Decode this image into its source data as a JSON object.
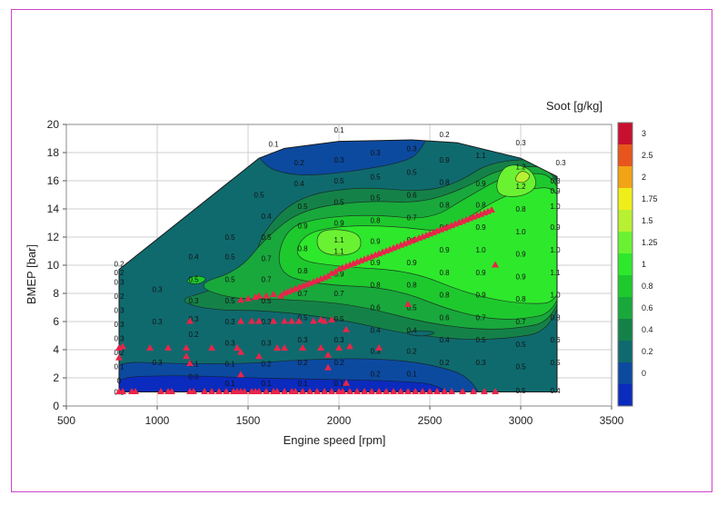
{
  "chart_data": {
    "type": "heatmap",
    "title": "",
    "xlabel": "Engine speed [rpm]",
    "ylabel": "BMEP [bar]",
    "colorbar_title": "Soot [g/kg]",
    "xlim": [
      500,
      3500
    ],
    "ylim": [
      0,
      20
    ],
    "x_ticks": [
      "500",
      "1000",
      "1500",
      "2000",
      "2500",
      "3000",
      "3500"
    ],
    "y_ticks": [
      "0",
      "2",
      "4",
      "6",
      "8",
      "10",
      "12",
      "14",
      "16",
      "18",
      "20"
    ],
    "colorbar_ticks": [
      "3",
      "2.5",
      "2",
      "1.75",
      "1.5",
      "1.25",
      "1",
      "0.8",
      "0.6",
      "0.4",
      "0.2",
      "0"
    ],
    "colorbar_colors": [
      "#c8102e",
      "#e8551c",
      "#f2a316",
      "#f0ee1a",
      "#b8f032",
      "#6af232",
      "#2ee82c",
      "#1ec92e",
      "#19a83c",
      "#148248",
      "#0f6a6e",
      "#0c4aa0",
      "#0a2bbd"
    ],
    "boundary": [
      [
        790,
        9.7
      ],
      [
        1560,
        17.6
      ],
      [
        1700,
        18.3
      ],
      [
        2000,
        18.8
      ],
      [
        2400,
        18.9
      ],
      [
        2650,
        18.7
      ],
      [
        3000,
        17.6
      ],
      [
        3200,
        16.3
      ],
      [
        3200,
        1.0
      ],
      [
        790,
        1.0
      ]
    ],
    "contour_labels": [
      {
        "x": 790,
        "y": 9.5,
        "v": "0.2"
      },
      {
        "x": 790,
        "y": 8.8,
        "v": "0.3"
      },
      {
        "x": 790,
        "y": 7.8,
        "v": "0.2"
      },
      {
        "x": 790,
        "y": 6.8,
        "v": "0.3"
      },
      {
        "x": 790,
        "y": 5.8,
        "v": "0.3"
      },
      {
        "x": 790,
        "y": 4.8,
        "v": "0.3"
      },
      {
        "x": 790,
        "y": 3.8,
        "v": "0.2"
      },
      {
        "x": 790,
        "y": 2.8,
        "v": "0.1"
      },
      {
        "x": 790,
        "y": 1.8,
        "v": "0"
      },
      {
        "x": 790,
        "y": 1.0,
        "v": "0.1"
      },
      {
        "x": 1000,
        "y": 8.3,
        "v": "0.3"
      },
      {
        "x": 1000,
        "y": 6.0,
        "v": "0.3"
      },
      {
        "x": 1000,
        "y": 3.1,
        "v": "0.3"
      },
      {
        "x": 1200,
        "y": 10.6,
        "v": "0.4"
      },
      {
        "x": 1200,
        "y": 9.0,
        "v": "0.5"
      },
      {
        "x": 1200,
        "y": 7.5,
        "v": "0.3"
      },
      {
        "x": 1200,
        "y": 6.2,
        "v": "0.3"
      },
      {
        "x": 1200,
        "y": 5.1,
        "v": "0.2"
      },
      {
        "x": 1200,
        "y": 3.0,
        "v": "0.1"
      },
      {
        "x": 1200,
        "y": 2.1,
        "v": "0.0"
      },
      {
        "x": 1400,
        "y": 12.0,
        "v": "0.5"
      },
      {
        "x": 1400,
        "y": 10.6,
        "v": "0.5"
      },
      {
        "x": 1400,
        "y": 9.0,
        "v": "0.5"
      },
      {
        "x": 1400,
        "y": 7.5,
        "v": "0.5"
      },
      {
        "x": 1400,
        "y": 6.0,
        "v": "0.3"
      },
      {
        "x": 1400,
        "y": 4.5,
        "v": "0.3"
      },
      {
        "x": 1400,
        "y": 3.0,
        "v": "0.1"
      },
      {
        "x": 1400,
        "y": 1.6,
        "v": "0.1"
      },
      {
        "x": 1560,
        "y": 15.0,
        "v": "0.5"
      },
      {
        "x": 1600,
        "y": 13.5,
        "v": "0.4"
      },
      {
        "x": 1600,
        "y": 12.0,
        "v": "0.5"
      },
      {
        "x": 1600,
        "y": 10.5,
        "v": "0.7"
      },
      {
        "x": 1600,
        "y": 9.0,
        "v": "0.7"
      },
      {
        "x": 1600,
        "y": 7.5,
        "v": "0.5"
      },
      {
        "x": 1600,
        "y": 6.0,
        "v": "0.3"
      },
      {
        "x": 1600,
        "y": 4.5,
        "v": "0.3"
      },
      {
        "x": 1600,
        "y": 3.0,
        "v": "0.2"
      },
      {
        "x": 1600,
        "y": 1.6,
        "v": "0.1"
      },
      {
        "x": 1780,
        "y": 17.3,
        "v": "0.2"
      },
      {
        "x": 1780,
        "y": 15.8,
        "v": "0.4"
      },
      {
        "x": 1800,
        "y": 14.2,
        "v": "0.5"
      },
      {
        "x": 1800,
        "y": 12.8,
        "v": "0.9"
      },
      {
        "x": 1800,
        "y": 11.2,
        "v": "0.8"
      },
      {
        "x": 1800,
        "y": 9.6,
        "v": "0.8"
      },
      {
        "x": 1800,
        "y": 8.0,
        "v": "0.7"
      },
      {
        "x": 1800,
        "y": 6.3,
        "v": "0.5"
      },
      {
        "x": 1800,
        "y": 4.7,
        "v": "0.3"
      },
      {
        "x": 1800,
        "y": 3.1,
        "v": "0.2"
      },
      {
        "x": 1800,
        "y": 1.6,
        "v": "0.1"
      },
      {
        "x": 2000,
        "y": 17.5,
        "v": "0.3"
      },
      {
        "x": 2000,
        "y": 16.0,
        "v": "0.5"
      },
      {
        "x": 2000,
        "y": 14.5,
        "v": "0.5"
      },
      {
        "x": 2000,
        "y": 13.0,
        "v": "0.9"
      },
      {
        "x": 2000,
        "y": 11.8,
        "v": "1.1"
      },
      {
        "x": 2000,
        "y": 11.0,
        "v": "1.1"
      },
      {
        "x": 2000,
        "y": 9.4,
        "v": "0.9"
      },
      {
        "x": 2000,
        "y": 8.0,
        "v": "0.7"
      },
      {
        "x": 2000,
        "y": 6.2,
        "v": "0.5"
      },
      {
        "x": 2000,
        "y": 4.7,
        "v": "0.3"
      },
      {
        "x": 2000,
        "y": 3.1,
        "v": "0.2"
      },
      {
        "x": 2000,
        "y": 1.6,
        "v": "0.1"
      },
      {
        "x": 2200,
        "y": 18.0,
        "v": "0.3"
      },
      {
        "x": 2200,
        "y": 16.3,
        "v": "0.5"
      },
      {
        "x": 2200,
        "y": 14.8,
        "v": "0.5"
      },
      {
        "x": 2200,
        "y": 13.2,
        "v": "0.8"
      },
      {
        "x": 2200,
        "y": 11.7,
        "v": "0.9"
      },
      {
        "x": 2200,
        "y": 10.2,
        "v": "0.9"
      },
      {
        "x": 2200,
        "y": 8.6,
        "v": "0.8"
      },
      {
        "x": 2200,
        "y": 7.0,
        "v": "0.6"
      },
      {
        "x": 2200,
        "y": 5.4,
        "v": "0.4"
      },
      {
        "x": 2200,
        "y": 3.9,
        "v": "0.3"
      },
      {
        "x": 2200,
        "y": 2.3,
        "v": "0.2"
      },
      {
        "x": 2400,
        "y": 18.3,
        "v": "0.3"
      },
      {
        "x": 2400,
        "y": 16.6,
        "v": "0.5"
      },
      {
        "x": 2400,
        "y": 15.0,
        "v": "0.6"
      },
      {
        "x": 2400,
        "y": 13.4,
        "v": "0.7"
      },
      {
        "x": 2400,
        "y": 11.8,
        "v": "0.9"
      },
      {
        "x": 2400,
        "y": 10.2,
        "v": "0.9"
      },
      {
        "x": 2400,
        "y": 8.6,
        "v": "0.8"
      },
      {
        "x": 2400,
        "y": 7.0,
        "v": "0.5"
      },
      {
        "x": 2400,
        "y": 5.4,
        "v": "0.4"
      },
      {
        "x": 2400,
        "y": 3.9,
        "v": "0.2"
      },
      {
        "x": 2400,
        "y": 2.3,
        "v": "0.1"
      },
      {
        "x": 2580,
        "y": 17.5,
        "v": "0.9"
      },
      {
        "x": 2580,
        "y": 15.9,
        "v": "0.8"
      },
      {
        "x": 2580,
        "y": 14.3,
        "v": "0.8"
      },
      {
        "x": 2580,
        "y": 12.7,
        "v": "0.9"
      },
      {
        "x": 2580,
        "y": 11.1,
        "v": "0.9"
      },
      {
        "x": 2580,
        "y": 9.5,
        "v": "0.8"
      },
      {
        "x": 2580,
        "y": 7.9,
        "v": "0.8"
      },
      {
        "x": 2580,
        "y": 6.3,
        "v": "0.6"
      },
      {
        "x": 2580,
        "y": 4.7,
        "v": "0.4"
      },
      {
        "x": 2580,
        "y": 3.1,
        "v": "0.2"
      },
      {
        "x": 2780,
        "y": 17.8,
        "v": "1.1"
      },
      {
        "x": 2780,
        "y": 15.8,
        "v": "0.9"
      },
      {
        "x": 2780,
        "y": 14.3,
        "v": "0.8"
      },
      {
        "x": 2780,
        "y": 12.7,
        "v": "0.9"
      },
      {
        "x": 2780,
        "y": 11.1,
        "v": "1.0"
      },
      {
        "x": 2780,
        "y": 9.5,
        "v": "0.9"
      },
      {
        "x": 2780,
        "y": 7.9,
        "v": "0.9"
      },
      {
        "x": 2780,
        "y": 6.3,
        "v": "0.7"
      },
      {
        "x": 2780,
        "y": 4.7,
        "v": "0.5"
      },
      {
        "x": 2780,
        "y": 3.1,
        "v": "0.3"
      },
      {
        "x": 3000,
        "y": 17.0,
        "v": "1.2"
      },
      {
        "x": 3000,
        "y": 15.6,
        "v": "1.2"
      },
      {
        "x": 3000,
        "y": 14.0,
        "v": "0.8"
      },
      {
        "x": 3000,
        "y": 12.4,
        "v": "1.0"
      },
      {
        "x": 3000,
        "y": 10.8,
        "v": "0.9"
      },
      {
        "x": 3000,
        "y": 9.2,
        "v": "0.9"
      },
      {
        "x": 3000,
        "y": 7.6,
        "v": "0.8"
      },
      {
        "x": 3000,
        "y": 6.0,
        "v": "0.7"
      },
      {
        "x": 3000,
        "y": 4.4,
        "v": "0.5"
      },
      {
        "x": 3000,
        "y": 2.8,
        "v": "0.5"
      },
      {
        "x": 3000,
        "y": 1.1,
        "v": "0.5"
      },
      {
        "x": 3190,
        "y": 16.0,
        "v": "0.3"
      },
      {
        "x": 3190,
        "y": 15.3,
        "v": "0.9"
      },
      {
        "x": 3190,
        "y": 14.2,
        "v": "1.0"
      },
      {
        "x": 3190,
        "y": 12.7,
        "v": "0.9"
      },
      {
        "x": 3190,
        "y": 11.1,
        "v": "1.0"
      },
      {
        "x": 3190,
        "y": 9.5,
        "v": "1.1"
      },
      {
        "x": 3190,
        "y": 7.9,
        "v": "1.0"
      },
      {
        "x": 3190,
        "y": 6.3,
        "v": "0.8"
      },
      {
        "x": 3190,
        "y": 4.7,
        "v": "0.6"
      },
      {
        "x": 3190,
        "y": 3.1,
        "v": "0.5"
      },
      {
        "x": 3190,
        "y": 1.1,
        "v": "0.4"
      },
      {
        "x": 790,
        "y": 10.1,
        "v": "0.2"
      },
      {
        "x": 1640,
        "y": 18.6,
        "v": "0.1"
      },
      {
        "x": 2000,
        "y": 19.6,
        "v": "0.1"
      },
      {
        "x": 2580,
        "y": 19.3,
        "v": "0.2"
      },
      {
        "x": 3000,
        "y": 18.7,
        "v": "0.3"
      },
      {
        "x": 3220,
        "y": 17.3,
        "v": "0.3"
      }
    ],
    "points": [
      [
        790,
        1
      ],
      [
        810,
        1
      ],
      [
        860,
        1
      ],
      [
        880,
        1
      ],
      [
        1020,
        1
      ],
      [
        1060,
        1
      ],
      [
        1080,
        1
      ],
      [
        1180,
        1
      ],
      [
        1200,
        1
      ],
      [
        1260,
        1
      ],
      [
        1300,
        1
      ],
      [
        1340,
        1
      ],
      [
        1380,
        1
      ],
      [
        1420,
        1
      ],
      [
        1440,
        1
      ],
      [
        1460,
        1
      ],
      [
        1480,
        1
      ],
      [
        1520,
        1
      ],
      [
        1540,
        1
      ],
      [
        1560,
        1
      ],
      [
        1600,
        1
      ],
      [
        1640,
        1
      ],
      [
        1660,
        1
      ],
      [
        1700,
        1
      ],
      [
        1740,
        1
      ],
      [
        1760,
        1
      ],
      [
        1800,
        1
      ],
      [
        1840,
        1
      ],
      [
        1880,
        1
      ],
      [
        1920,
        1
      ],
      [
        1960,
        1
      ],
      [
        2000,
        1
      ],
      [
        2020,
        1
      ],
      [
        2060,
        1
      ],
      [
        2100,
        1
      ],
      [
        2140,
        1
      ],
      [
        2180,
        1
      ],
      [
        2220,
        1
      ],
      [
        2260,
        1
      ],
      [
        2300,
        1
      ],
      [
        2340,
        1
      ],
      [
        2380,
        1
      ],
      [
        2420,
        1
      ],
      [
        2460,
        1
      ],
      [
        2500,
        1
      ],
      [
        2540,
        1
      ],
      [
        2580,
        1
      ],
      [
        2620,
        1
      ],
      [
        2680,
        1
      ],
      [
        2740,
        1
      ],
      [
        2800,
        1
      ],
      [
        2860,
        1
      ],
      [
        790,
        4.1
      ],
      [
        790,
        3.4
      ],
      [
        810,
        4.2
      ],
      [
        960,
        4.1
      ],
      [
        1060,
        4.1
      ],
      [
        1160,
        4.1
      ],
      [
        1160,
        3.5
      ],
      [
        1180,
        3.0
      ],
      [
        1300,
        4.1
      ],
      [
        1440,
        4.1
      ],
      [
        1460,
        3.8
      ],
      [
        1560,
        3.5
      ],
      [
        1660,
        4.1
      ],
      [
        1700,
        4.1
      ],
      [
        1800,
        4.1
      ],
      [
        1900,
        4.1
      ],
      [
        1940,
        3.6
      ],
      [
        2000,
        4.1
      ],
      [
        2060,
        4.2
      ],
      [
        2220,
        4.1
      ],
      [
        1460,
        2.2
      ],
      [
        1940,
        2.7
      ],
      [
        2040,
        1.6
      ],
      [
        1180,
        6.0
      ],
      [
        1460,
        6.0
      ],
      [
        1520,
        6.0
      ],
      [
        1560,
        6.0
      ],
      [
        1640,
        6.0
      ],
      [
        1700,
        6.0
      ],
      [
        1740,
        6.0
      ],
      [
        1780,
        6.0
      ],
      [
        1860,
        6.0
      ],
      [
        1900,
        6.1
      ],
      [
        1920,
        6.0
      ],
      [
        1960,
        6.1
      ],
      [
        2040,
        5.4
      ],
      [
        2380,
        7.2
      ],
      [
        1460,
        7.5
      ],
      [
        1500,
        7.6
      ],
      [
        1540,
        7.7
      ],
      [
        1560,
        7.8
      ],
      [
        1600,
        7.8
      ],
      [
        1640,
        7.9
      ],
      [
        1680,
        7.8
      ],
      [
        1700,
        8.0
      ],
      [
        1720,
        8.1
      ],
      [
        1740,
        8.2
      ],
      [
        1760,
        8.3
      ],
      [
        1780,
        8.4
      ],
      [
        1800,
        8.5
      ],
      [
        1820,
        8.6
      ],
      [
        1840,
        8.7
      ],
      [
        1860,
        8.8
      ],
      [
        1880,
        8.9
      ],
      [
        1900,
        9.0
      ],
      [
        1920,
        9.1
      ],
      [
        1940,
        9.2
      ],
      [
        1960,
        9.4
      ],
      [
        1980,
        9.5
      ],
      [
        2000,
        9.7
      ],
      [
        2020,
        9.8
      ],
      [
        2040,
        9.9
      ],
      [
        2060,
        10.0
      ],
      [
        2080,
        10.1
      ],
      [
        2100,
        10.2
      ],
      [
        2120,
        10.3
      ],
      [
        2140,
        10.4
      ],
      [
        2160,
        10.5
      ],
      [
        2180,
        10.6
      ],
      [
        2200,
        10.7
      ],
      [
        2220,
        10.8
      ],
      [
        2240,
        10.9
      ],
      [
        2260,
        11.0
      ],
      [
        2280,
        11.1
      ],
      [
        2300,
        11.2
      ],
      [
        2320,
        11.3
      ],
      [
        2340,
        11.4
      ],
      [
        2360,
        11.5
      ],
      [
        2380,
        11.6
      ],
      [
        2400,
        11.7
      ],
      [
        2420,
        11.8
      ],
      [
        2440,
        11.9
      ],
      [
        2460,
        12.0
      ],
      [
        2480,
        12.1
      ],
      [
        2500,
        12.2
      ],
      [
        2520,
        12.3
      ],
      [
        2540,
        12.4
      ],
      [
        2560,
        12.5
      ],
      [
        2580,
        12.6
      ],
      [
        2600,
        12.7
      ],
      [
        2620,
        12.8
      ],
      [
        2640,
        12.9
      ],
      [
        2660,
        13.0
      ],
      [
        2680,
        13.1
      ],
      [
        2700,
        13.2
      ],
      [
        2720,
        13.3
      ],
      [
        2740,
        13.4
      ],
      [
        2760,
        13.5
      ],
      [
        2780,
        13.6
      ],
      [
        2800,
        13.7
      ],
      [
        2820,
        13.8
      ],
      [
        2840,
        13.9
      ],
      [
        2860,
        10.0
      ]
    ],
    "point_color": "#e8254a",
    "legend": "colorbar-right",
    "grid": true
  }
}
